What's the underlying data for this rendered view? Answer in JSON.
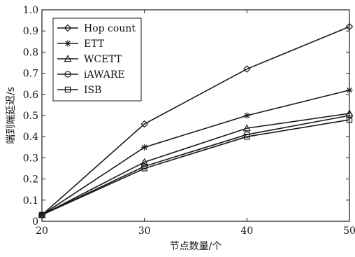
{
  "chart_data": {
    "type": "line",
    "title": "",
    "xlabel": "节点数量/个",
    "ylabel": "端到端延迟/s",
    "x": [
      20,
      30,
      40,
      50
    ],
    "xlim": [
      20,
      50
    ],
    "ylim": [
      0,
      1.0
    ],
    "xticks": [
      "20",
      "30",
      "40",
      "50"
    ],
    "yticks": [
      "0",
      "0.1",
      "0.2",
      "0.3",
      "0.4",
      "0.5",
      "0.6",
      "0.7",
      "0.8",
      "0.9",
      "1.0"
    ],
    "grid": false,
    "legend_position": "top-left",
    "series": [
      {
        "name": "Hop count",
        "marker": "diamond",
        "values": [
          0.03,
          0.46,
          0.72,
          0.92
        ]
      },
      {
        "name": "ETT",
        "marker": "asterisk",
        "values": [
          0.03,
          0.35,
          0.5,
          0.62
        ]
      },
      {
        "name": "WCETT",
        "marker": "triangle",
        "values": [
          0.03,
          0.28,
          0.44,
          0.51
        ]
      },
      {
        "name": "iAWARE",
        "marker": "circle",
        "values": [
          0.03,
          0.26,
          0.41,
          0.5
        ]
      },
      {
        "name": "ISB",
        "marker": "square",
        "values": [
          0.03,
          0.25,
          0.4,
          0.48
        ]
      }
    ]
  }
}
